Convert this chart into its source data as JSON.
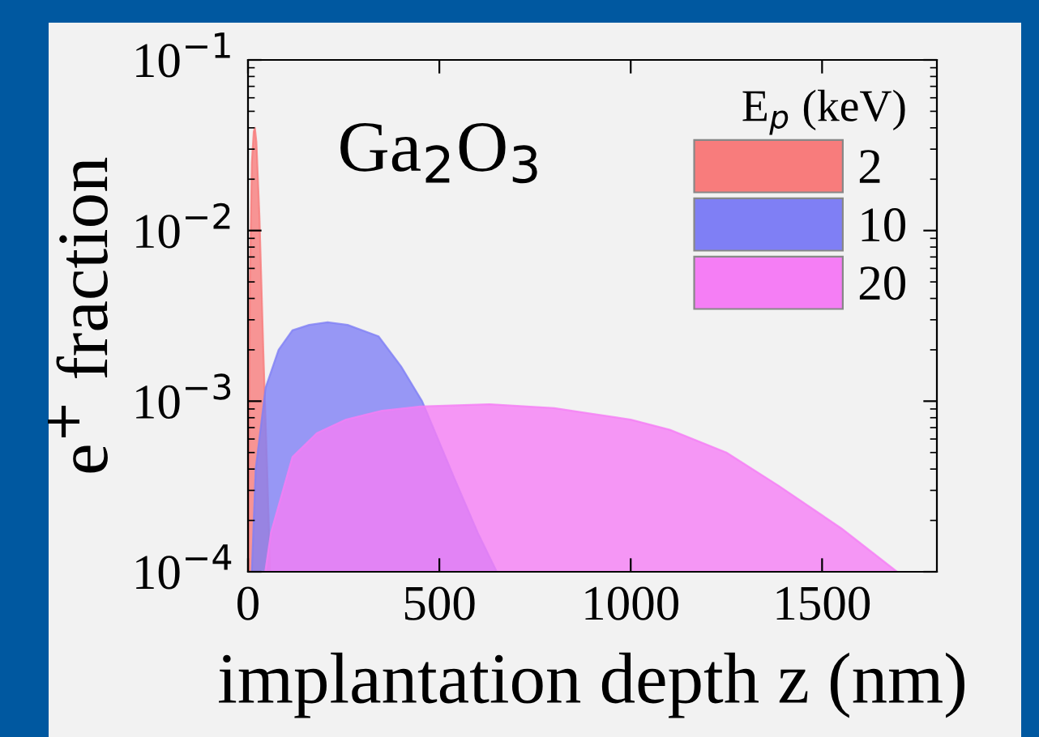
{
  "chart_data": {
    "type": "area",
    "xlabel": "implantation depth z (nm)",
    "ylabel": "e$^{+}$ fraction",
    "legend_title": "E$_{p}$ (keV)",
    "annotations": [
      "Ga$_{2}$O$_{3}$"
    ],
    "log": "y",
    "xlim": [
      0,
      1800
    ],
    "xticks": [
      0,
      500,
      1000,
      1500
    ],
    "ylim": [
      0.0001,
      0.1
    ],
    "yticks": [
      {
        "value": 0.0001,
        "label": "10$^{−4}$"
      },
      {
        "value": 0.001,
        "label": "10$^{−3}$"
      },
      {
        "value": 0.01,
        "label": "10$^{−2}$"
      },
      {
        "value": 0.1,
        "label": "10$^{−1}$"
      }
    ],
    "grid": false,
    "legend": "top right",
    "series": [
      {
        "name": "2",
        "color": "#f87c7c",
        "x": [
          2,
          5,
          10,
          15,
          18,
          22,
          30,
          40,
          50,
          58
        ],
        "values": [
          0.0003,
          0.005,
          0.025,
          0.038,
          0.04,
          0.033,
          0.012,
          0.002,
          0.0004,
          0.0001
        ]
      },
      {
        "name": "10",
        "color": "#7f7ff5",
        "x": [
          10,
          20,
          46,
          80,
          116,
          160,
          208,
          260,
          341,
          400,
          455,
          540,
          600,
          650
        ],
        "values": [
          0.0001,
          0.0004,
          0.0012,
          0.002,
          0.0026,
          0.0028,
          0.0029,
          0.0028,
          0.0024,
          0.0016,
          0.001,
          0.00035,
          0.00017,
          0.0001
        ]
      },
      {
        "name": "20",
        "color": "#f57ef5",
        "x": [
          45,
          60,
          116,
          180,
          256,
          350,
          450,
          631,
          800,
          1000,
          1102,
          1250,
          1386,
          1550,
          1696
        ],
        "values": [
          0.0001,
          0.00017,
          0.00047,
          0.00065,
          0.00078,
          0.00088,
          0.00093,
          0.00096,
          0.00091,
          0.00078,
          0.00068,
          0.0005,
          0.00032,
          0.00018,
          0.0001
        ]
      }
    ]
  }
}
